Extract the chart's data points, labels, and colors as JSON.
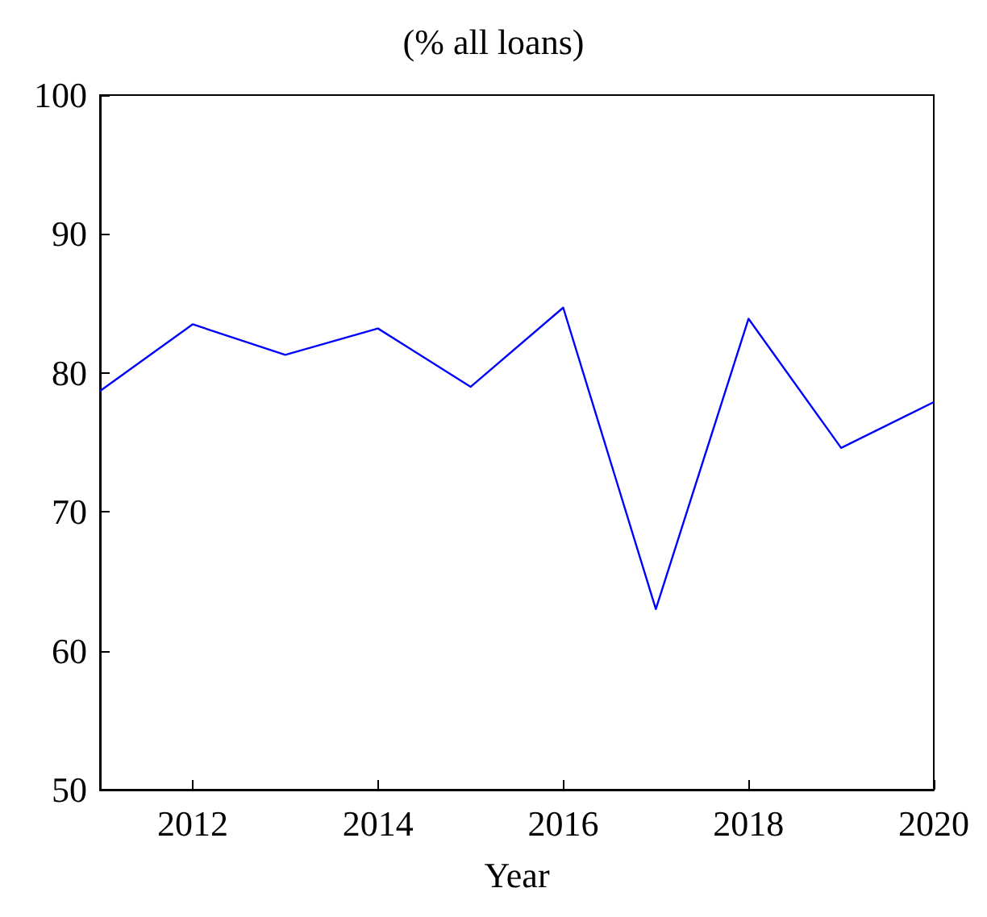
{
  "chart_data": {
    "type": "line",
    "title": "(% all loans)",
    "xlabel": "Year",
    "x": [
      2011,
      2012,
      2013,
      2014,
      2015,
      2016,
      2017,
      2018,
      2019,
      2020
    ],
    "series": [
      {
        "color": "#0000ff",
        "values": [
          78.7,
          83.5,
          81.3,
          83.2,
          79.0,
          84.7,
          63.0,
          83.9,
          74.6,
          77.9
        ]
      }
    ],
    "xlim": [
      2011,
      2020
    ],
    "xticks": [
      2012,
      2014,
      2016,
      2018,
      2020
    ],
    "ylim": [
      50,
      100
    ],
    "yticks": [
      50,
      60,
      70,
      80,
      90,
      100
    ],
    "grid": false,
    "marker": "none",
    "line_style": "solid"
  }
}
